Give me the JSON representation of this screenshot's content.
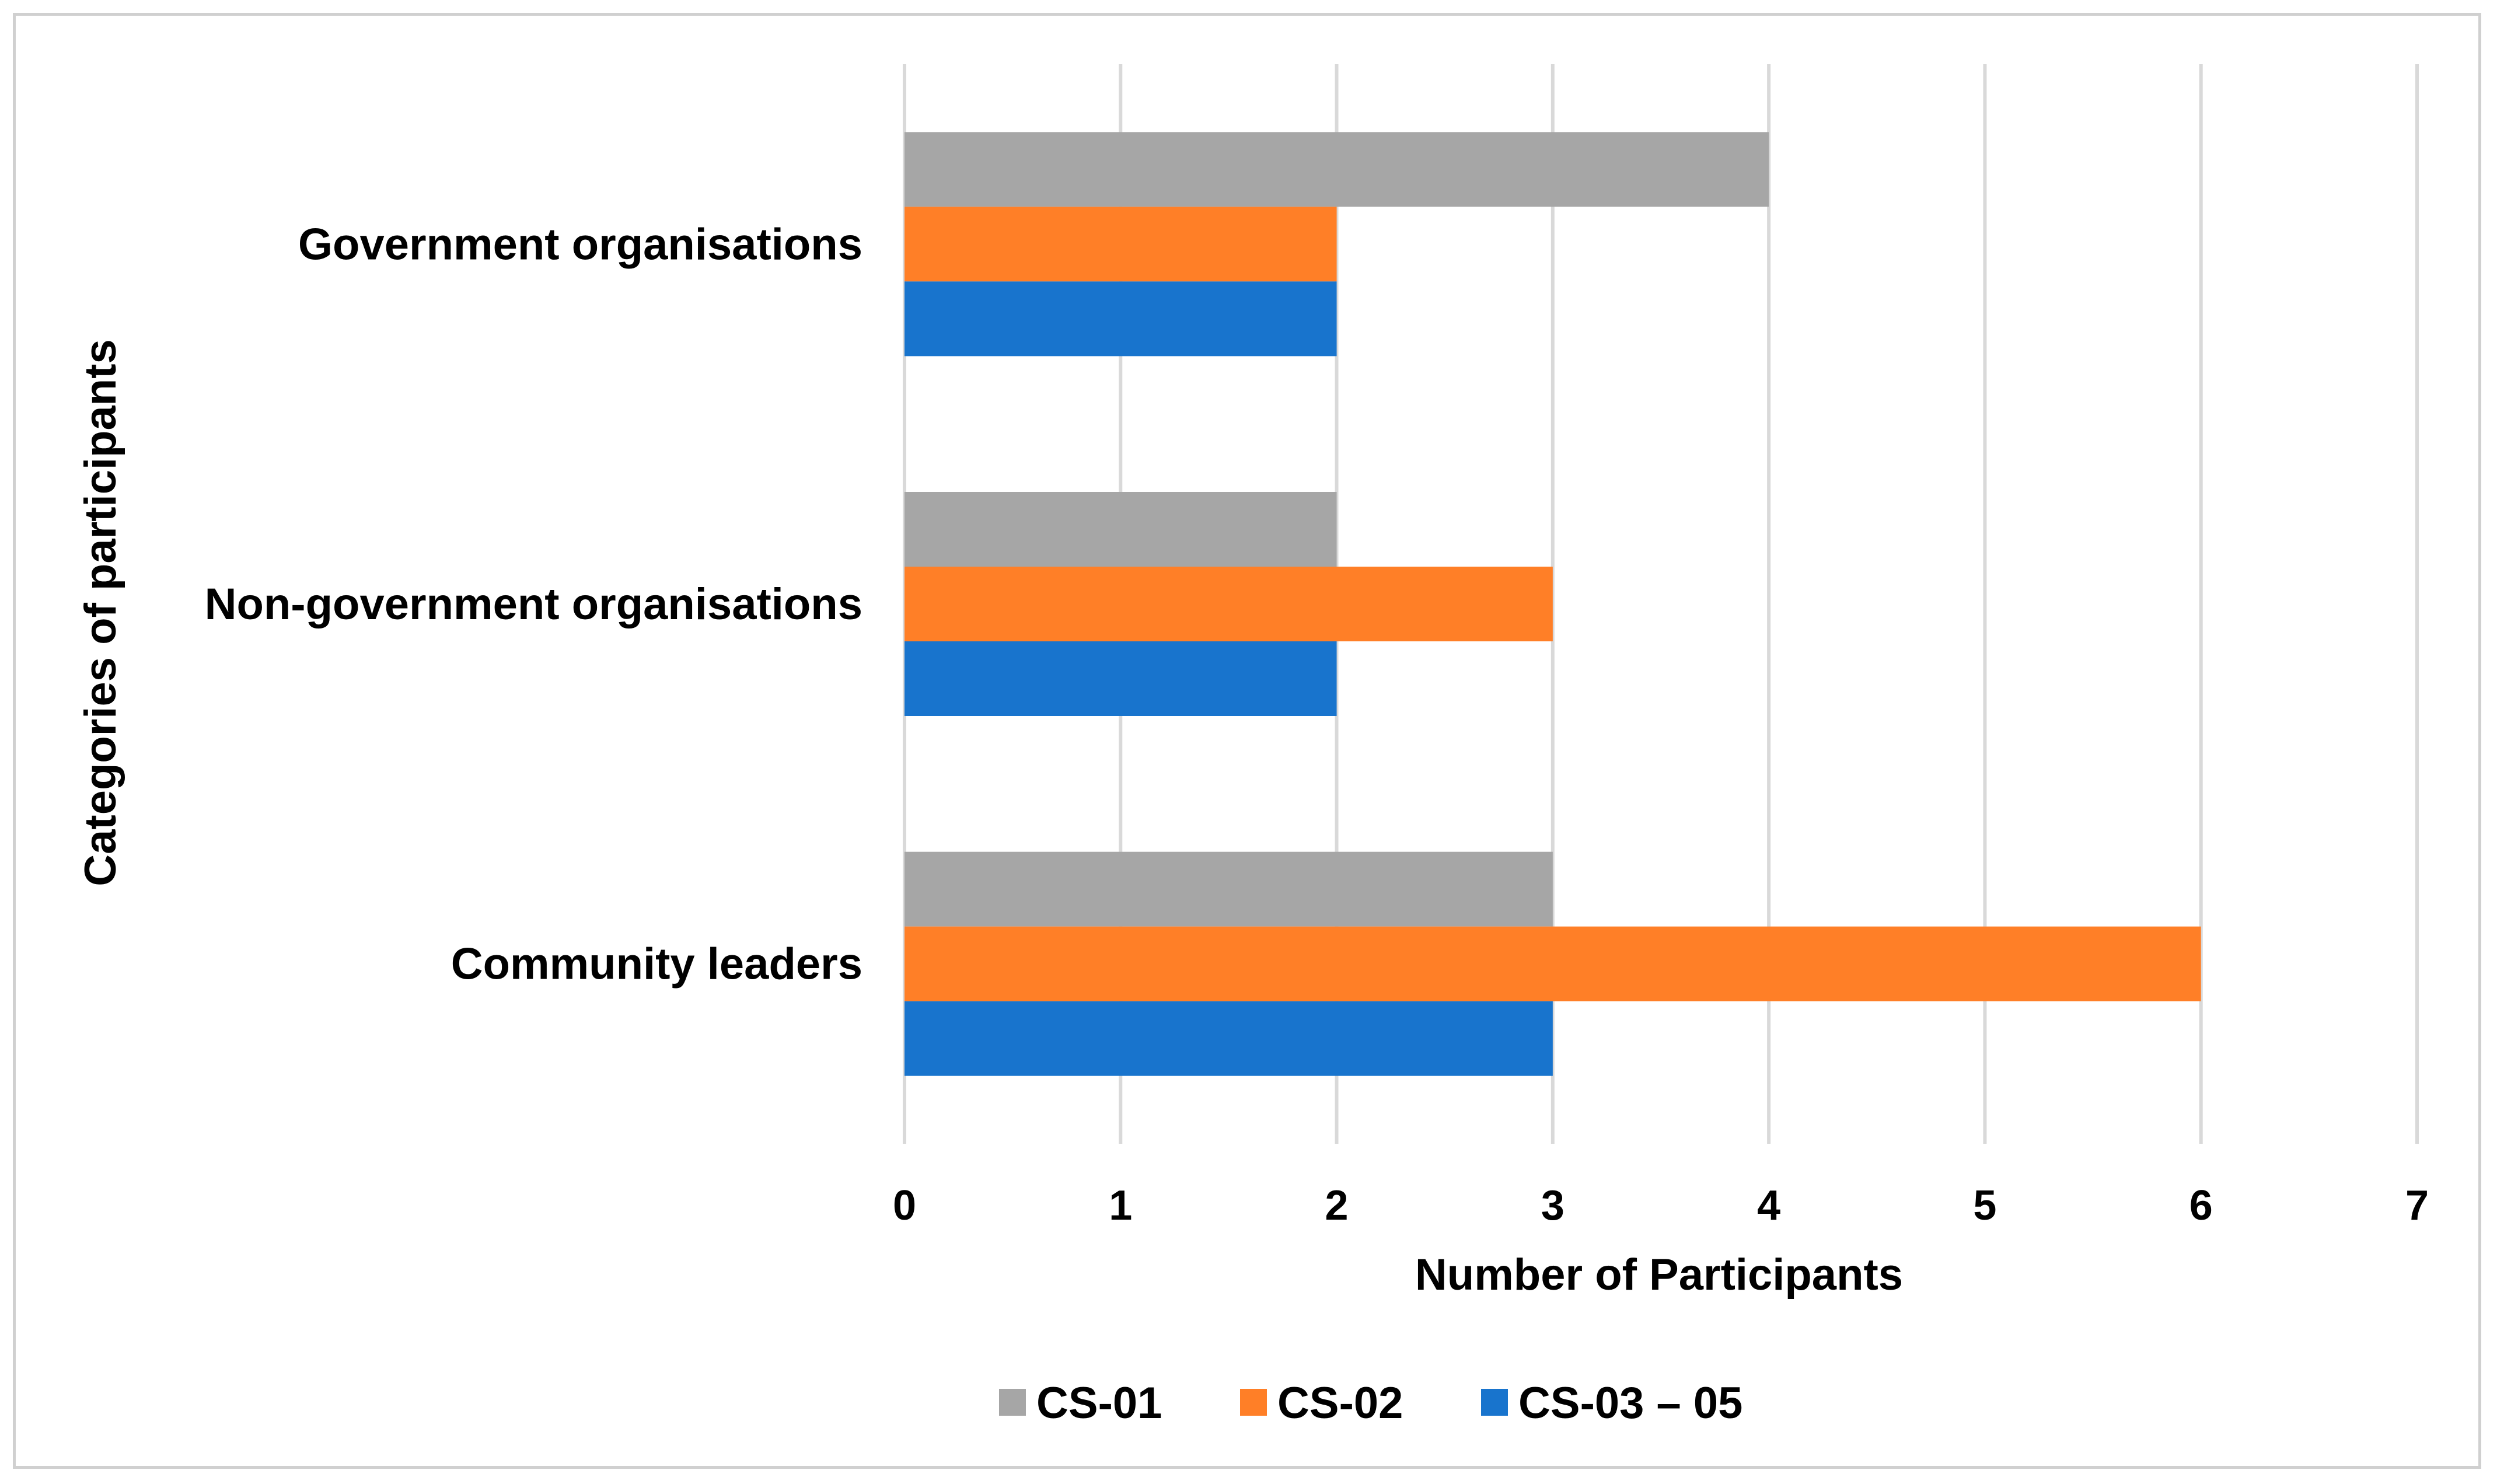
{
  "chart_data": {
    "type": "bar",
    "orientation": "horizontal",
    "categories": [
      "Government organisations",
      "Non-government organisations",
      "Community leaders"
    ],
    "series": [
      {
        "name": "CS-01",
        "color": "#a6a6a6",
        "values": [
          4,
          2,
          3
        ]
      },
      {
        "name": "CS-02",
        "color": "#ff7f27",
        "values": [
          2,
          3,
          6
        ]
      },
      {
        "name": "CS-03 – 05",
        "color": "#1874cd",
        "values": [
          2,
          2,
          3
        ]
      }
    ],
    "title": "",
    "xlabel": "Number of Participants",
    "ylabel": "Categories of participants",
    "xlim": [
      0,
      7
    ],
    "x_ticks": [
      "0",
      "1",
      "2",
      "3",
      "4",
      "5",
      "6",
      "7"
    ],
    "grid": "vertical",
    "legend_position": "bottom"
  }
}
